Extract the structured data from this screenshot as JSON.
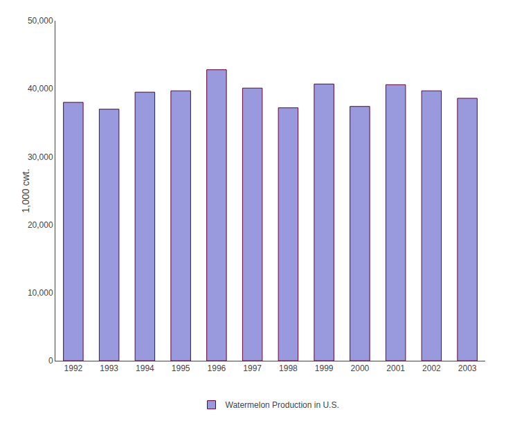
{
  "chart_data": {
    "type": "bar",
    "ylabel": "1,000 cwt.",
    "categories": [
      "1992",
      "1993",
      "1994",
      "1995",
      "1996",
      "1997",
      "1998",
      "1999",
      "2000",
      "2001",
      "2002",
      "2003"
    ],
    "series": [
      {
        "name": "Watermelon Production in U.S.",
        "color": "#9999dd",
        "values": [
          38000,
          37000,
          39500,
          39700,
          42800,
          40100,
          37200,
          40700,
          37400,
          40600,
          39700,
          38600
        ]
      }
    ],
    "ylim": [
      0,
      50000
    ],
    "yticks": [
      0,
      {
        "value": 10000,
        "label": "10,000"
      },
      {
        "value": 20000,
        "label": "20,000"
      },
      {
        "value": 30000,
        "label": "30,000"
      },
      {
        "value": 40000,
        "label": "40,000"
      },
      {
        "value": 50000,
        "label": "50,000"
      }
    ],
    "grid": false,
    "legend": "bottom"
  }
}
